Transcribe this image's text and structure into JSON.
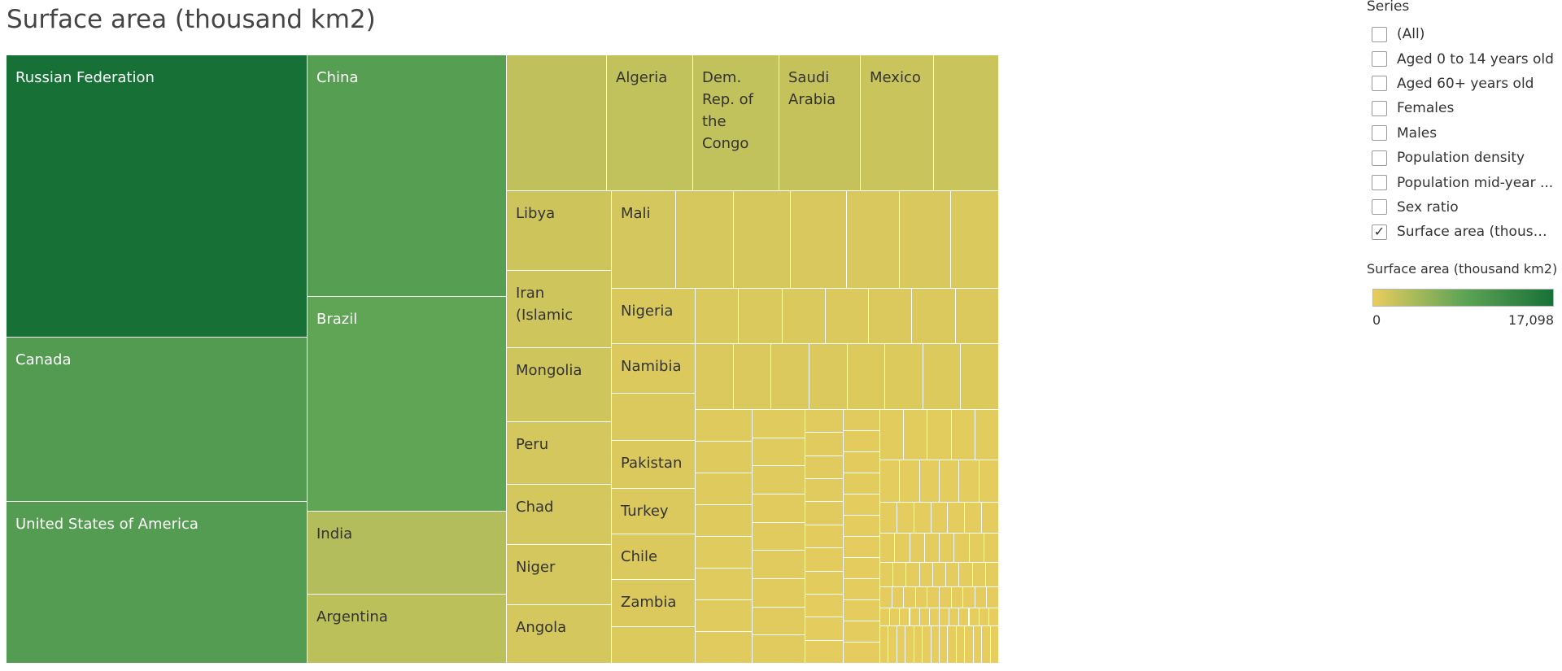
{
  "chart_data": {
    "type": "treemap",
    "title": "Surface area (thousand km2)",
    "color_range": [
      0,
      17098
    ],
    "color_scale": [
      "#e8cd5e",
      "#5fa456",
      "#177137"
    ],
    "items": [
      {
        "label": "Russian Federation",
        "value": 17098
      },
      {
        "label": "Canada",
        "value": 9985
      },
      {
        "label": "United States of America",
        "value": 9834
      },
      {
        "label": "China",
        "value": 9600
      },
      {
        "label": "Brazil",
        "value": 8516
      },
      {
        "label": "India",
        "value": 3287
      },
      {
        "label": "Argentina",
        "value": 2780
      },
      {
        "label": "Algeria",
        "value": 2382
      },
      {
        "label": "Dem. Rep. of the Congo",
        "value": 2345
      },
      {
        "label": "Saudi Arabia",
        "value": 2207
      },
      {
        "label": "Mexico",
        "value": 1964
      },
      {
        "label": "Libya",
        "value": 1676
      },
      {
        "label": "Iran (Islamic",
        "value": 1629
      },
      {
        "label": "Mongolia",
        "value": 1564
      },
      {
        "label": "Peru",
        "value": 1285
      },
      {
        "label": "Chad",
        "value": 1284
      },
      {
        "label": "Niger",
        "value": 1267
      },
      {
        "label": "Angola",
        "value": 1247
      },
      {
        "label": "Mali",
        "value": 1240
      },
      {
        "label": "Nigeria",
        "value": 924
      },
      {
        "label": "Namibia",
        "value": 824
      },
      {
        "label": "Pakistan",
        "value": 796
      },
      {
        "label": "Turkey",
        "value": 784
      },
      {
        "label": "Chile",
        "value": 756
      },
      {
        "label": "Zambia",
        "value": 753
      }
    ]
  },
  "legend": {
    "series_title": "Series",
    "series": [
      {
        "label": "(All)",
        "checked": false
      },
      {
        "label": "Aged 0 to 14 years old",
        "checked": false
      },
      {
        "label": "Aged 60+ years old",
        "checked": false
      },
      {
        "label": "Females",
        "checked": false
      },
      {
        "label": "Males",
        "checked": false
      },
      {
        "label": "Population density",
        "checked": false
      },
      {
        "label": "Population mid-year ...",
        "checked": false
      },
      {
        "label": "Sex ratio",
        "checked": false
      },
      {
        "label": "Surface area (thousa...",
        "checked": true
      }
    ],
    "check_mark": "✓",
    "color_title": "Surface area (thousand km2)",
    "color_min_label": "0",
    "color_max_label": "17,098"
  }
}
